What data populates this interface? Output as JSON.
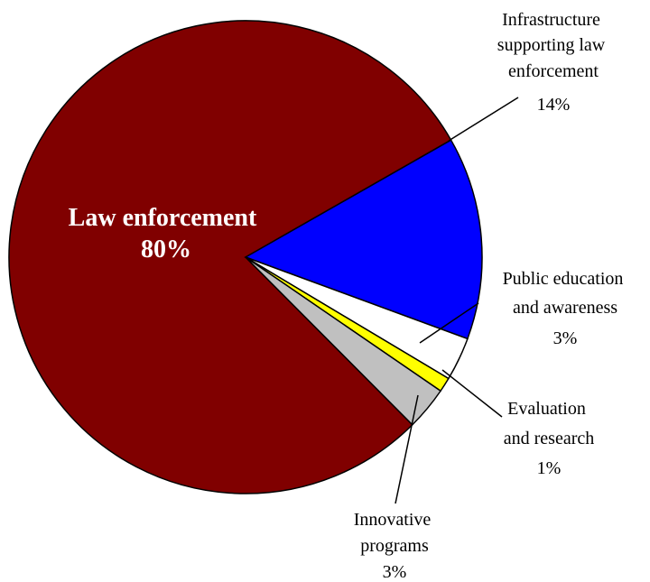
{
  "chart_data": {
    "type": "pie",
    "title": "",
    "legend": "none",
    "slices": [
      {
        "label": "Law enforcement",
        "value": 80,
        "value_label": "80%",
        "color": "#800000"
      },
      {
        "label": "Infrastructure supporting law enforcement",
        "value": 14,
        "value_label": "14%",
        "color": "#0000FF"
      },
      {
        "label": "Public education and awareness",
        "value": 3,
        "value_label": "3%",
        "color": "#FFFFFF"
      },
      {
        "label": "Evaluation and research",
        "value": 1,
        "value_label": "1%",
        "color": "#FFFF00"
      },
      {
        "label": "Innovative programs",
        "value": 3,
        "value_label": "3%",
        "color": "#C0C0C0"
      }
    ]
  }
}
